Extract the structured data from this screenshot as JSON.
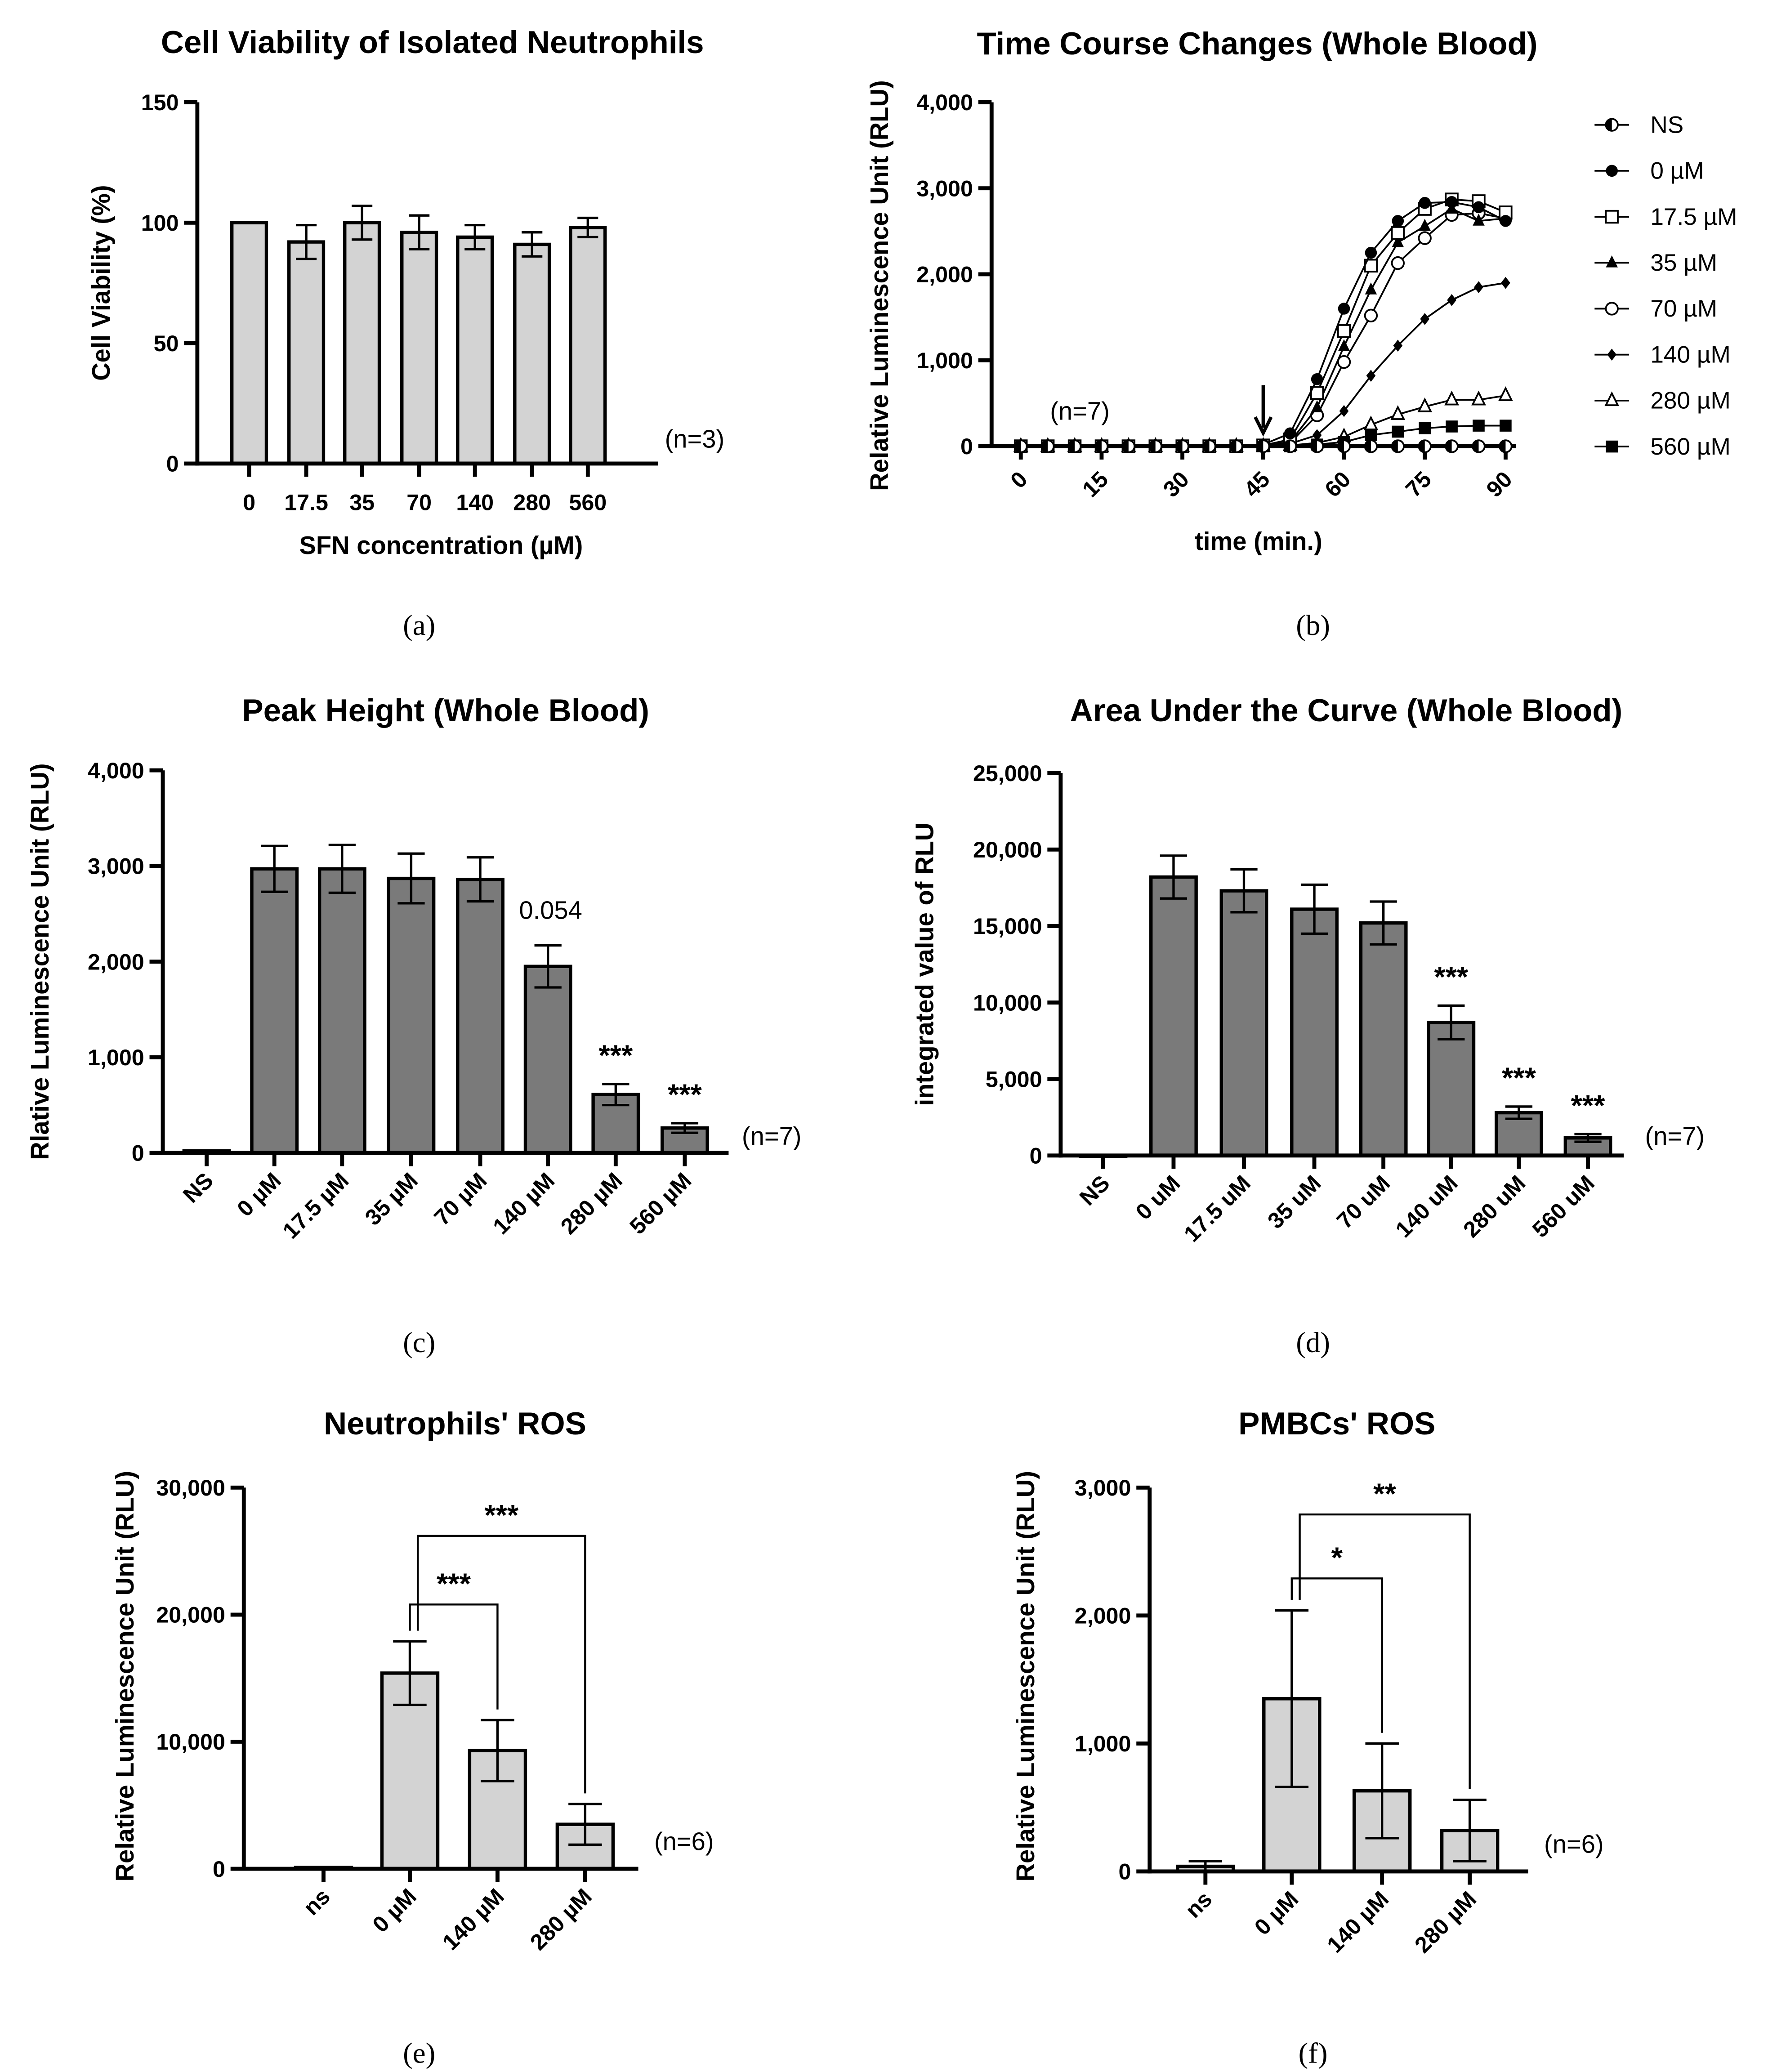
{
  "colors": {
    "light_bar": "#d3d3d3",
    "dark_bar": "#7a7a7a",
    "axis": "#000000"
  },
  "panel_letters": [
    "(a)",
    "(b)",
    "(c)",
    "(d)",
    "(e)",
    "(f)"
  ],
  "chart_data": [
    {
      "type": "bar",
      "title": "Cell Viability of Isolated Neutrophils",
      "xlabel": "SFN concentration (µM)",
      "ylabel": "Cell Viability (%)",
      "ylim": [
        0,
        150
      ],
      "yticks": [
        0,
        50,
        100,
        150
      ],
      "ytick_labels": [
        "0",
        "50",
        "100",
        "150"
      ],
      "categories": [
        "0",
        "17.5",
        "35",
        "70",
        "140",
        "280",
        "560"
      ],
      "values": [
        100,
        92,
        100,
        96,
        94,
        91,
        98
      ],
      "errors": [
        0,
        7,
        7,
        7,
        5,
        5,
        4
      ],
      "annotations": [],
      "note": "(n=3)"
    },
    {
      "type": "line",
      "title": "Time Course Changes (Whole Blood)",
      "xlabel": "time (min.)",
      "ylabel": "Relative Luminescence Unit (RLU)",
      "xlim": [
        0,
        90
      ],
      "ylim": [
        0,
        4000
      ],
      "xticks": [
        0,
        15,
        30,
        45,
        60,
        75,
        90
      ],
      "xtick_labels": [
        "0",
        "15",
        "30",
        "45",
        "60",
        "75",
        "90"
      ],
      "yticks": [
        0,
        1000,
        2000,
        3000,
        4000
      ],
      "ytick_labels": [
        "0",
        "1,000",
        "2,000",
        "3,000",
        "4,000"
      ],
      "x": [
        0,
        5,
        10,
        15,
        20,
        25,
        30,
        35,
        40,
        45,
        50,
        55,
        60,
        65,
        70,
        75,
        80,
        85,
        90
      ],
      "series": [
        {
          "name": "NS",
          "marker": "half-circle",
          "values": [
            0,
            0,
            0,
            0,
            0,
            0,
            0,
            0,
            0,
            0,
            0,
            0,
            0,
            0,
            0,
            0,
            0,
            0,
            0
          ]
        },
        {
          "name": "0 µM",
          "marker": "filled-circle",
          "values": [
            0,
            0,
            0,
            0,
            0,
            0,
            0,
            0,
            0,
            20,
            150,
            780,
            1600,
            2250,
            2620,
            2830,
            2840,
            2780,
            2620
          ]
        },
        {
          "name": "17.5 µM",
          "marker": "open-square",
          "values": [
            0,
            0,
            0,
            0,
            0,
            0,
            0,
            0,
            0,
            10,
            80,
            620,
            1340,
            2100,
            2480,
            2760,
            2870,
            2850,
            2720
          ]
        },
        {
          "name": "35 µM",
          "marker": "filled-triangle",
          "values": [
            0,
            0,
            0,
            0,
            0,
            0,
            0,
            0,
            0,
            10,
            50,
            450,
            1160,
            1820,
            2370,
            2560,
            2760,
            2620,
            2650
          ]
        },
        {
          "name": "70 µM",
          "marker": "open-circle",
          "values": [
            0,
            0,
            0,
            0,
            0,
            0,
            0,
            0,
            0,
            10,
            40,
            360,
            980,
            1520,
            2130,
            2420,
            2690,
            2710,
            2650
          ]
        },
        {
          "name": "140 µM",
          "marker": "filled-diamond",
          "values": [
            0,
            0,
            0,
            0,
            0,
            0,
            0,
            0,
            0,
            0,
            30,
            130,
            410,
            820,
            1170,
            1480,
            1700,
            1850,
            1900
          ]
        },
        {
          "name": "280 µM",
          "marker": "open-triangle",
          "values": [
            0,
            0,
            0,
            0,
            0,
            0,
            0,
            0,
            0,
            0,
            10,
            40,
            110,
            250,
            370,
            460,
            540,
            540,
            590
          ]
        },
        {
          "name": "560 µM",
          "marker": "filled-square",
          "values": [
            0,
            0,
            0,
            0,
            0,
            0,
            0,
            0,
            0,
            0,
            0,
            20,
            50,
            130,
            170,
            210,
            230,
            240,
            240
          ]
        }
      ],
      "arrow_at_x": 45,
      "legend_position": "right",
      "note": "(n=7)"
    },
    {
      "type": "bar",
      "title": "Peak Height (Whole Blood)",
      "xlabel": "",
      "ylabel": "Rlative Luminescence Unit (RLU)",
      "ylim": [
        0,
        4000
      ],
      "yticks": [
        0,
        1000,
        2000,
        3000,
        4000
      ],
      "ytick_labels": [
        "0",
        "1,000",
        "2,000",
        "3,000",
        "4,000"
      ],
      "categories": [
        "NS",
        "0 µM",
        "17.5 µM",
        "35 µM",
        "70 µM",
        "140 µM",
        "280 µM",
        "560 µM"
      ],
      "values": [
        20,
        2970,
        2970,
        2870,
        2860,
        1950,
        610,
        260
      ],
      "errors": [
        0,
        240,
        250,
        260,
        230,
        220,
        110,
        50
      ],
      "annotations": [
        {
          "index": 5,
          "text": "0.054"
        },
        {
          "index": 6,
          "text": "***"
        },
        {
          "index": 7,
          "text": "***"
        }
      ],
      "note": "(n=7)"
    },
    {
      "type": "bar",
      "title": "Area Under the Curve (Whole Blood)",
      "xlabel": "",
      "ylabel": "integrated value of RLU",
      "ylim": [
        0,
        25000
      ],
      "yticks": [
        0,
        5000,
        10000,
        15000,
        20000,
        25000
      ],
      "ytick_labels": [
        "0",
        "5,000",
        "10,000",
        "15,000",
        "20,000",
        "25,000"
      ],
      "categories": [
        "NS",
        "0 uM",
        "17.5 uM",
        "35 uM",
        "70 uM",
        "140 uM",
        "280 uM",
        "560 uM"
      ],
      "values": [
        0,
        18200,
        17300,
        16100,
        15200,
        8700,
        2800,
        1150
      ],
      "errors": [
        0,
        1400,
        1400,
        1600,
        1400,
        1100,
        400,
        250
      ],
      "annotations": [
        {
          "index": 5,
          "text": "***"
        },
        {
          "index": 6,
          "text": "***"
        },
        {
          "index": 7,
          "text": "***"
        }
      ],
      "note": "(n=7)"
    },
    {
      "type": "bar",
      "title": "Neutrophils' ROS",
      "xlabel": "",
      "ylabel": "Relative Luminescence Unit (RLU)",
      "ylim": [
        0,
        30000
      ],
      "yticks": [
        0,
        10000,
        20000,
        30000
      ],
      "ytick_labels": [
        "0",
        "10,000",
        "20,000",
        "30,000"
      ],
      "categories": [
        "ns",
        "0 µM",
        "140 µM",
        "280 µM"
      ],
      "values": [
        100,
        15400,
        9300,
        3500
      ],
      "errors": [
        0,
        2500,
        2400,
        1600
      ],
      "brackets": [
        {
          "from": 1,
          "to": 2,
          "text": "***",
          "level": 20800
        },
        {
          "from": 1,
          "to": 3,
          "text": "***",
          "level": 26200
        }
      ],
      "annotations": [],
      "note": "(n=6)"
    },
    {
      "type": "bar",
      "title": "PMBCs' ROS",
      "xlabel": "",
      "ylabel": "Relative Luminescence Unit (RLU)",
      "ylim": [
        0,
        3000
      ],
      "yticks": [
        0,
        1000,
        2000,
        3000
      ],
      "ytick_labels": [
        "0",
        "1,000",
        "2,000",
        "3,000"
      ],
      "categories": [
        "ns",
        "0 µM",
        "140 µM",
        "280 µM"
      ],
      "values": [
        40,
        1350,
        630,
        320
      ],
      "errors": [
        40,
        690,
        370,
        240
      ],
      "brackets": [
        {
          "from": 1,
          "to": 2,
          "text": "*",
          "level": 2290
        },
        {
          "from": 1,
          "to": 3,
          "text": "**",
          "level": 2790
        }
      ],
      "annotations": [],
      "note": "(n=6)"
    }
  ]
}
